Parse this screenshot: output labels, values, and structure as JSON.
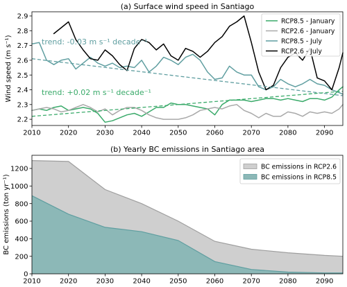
{
  "chart_data": [
    {
      "type": "line",
      "title": "(a) Surface wind speed in Santiago",
      "ylabel": "Wind speed (m s⁻¹)",
      "xlim": [
        2010,
        2095
      ],
      "ylim": [
        2.158,
        2.928
      ],
      "grid": false,
      "legend_position": "top-right",
      "x_ticks": [
        "2010",
        "2020",
        "2030",
        "2040",
        "2050",
        "2060",
        "2070",
        "2080",
        "2090"
      ],
      "y_ticks": [
        "2.2",
        "2.3",
        "2.4",
        "2.5",
        "2.6",
        "2.7",
        "2.8",
        "2.9"
      ],
      "x": [
        2010,
        2012,
        2014,
        2016,
        2018,
        2020,
        2022,
        2024,
        2026,
        2028,
        2030,
        2032,
        2034,
        2036,
        2038,
        2040,
        2042,
        2044,
        2046,
        2048,
        2050,
        2052,
        2054,
        2056,
        2058,
        2060,
        2062,
        2064,
        2066,
        2068,
        2070,
        2072,
        2074,
        2076,
        2078,
        2080,
        2082,
        2084,
        2086,
        2088,
        2090,
        2092,
        2094,
        2095
      ],
      "series": [
        {
          "name": "RCP8.5 - January",
          "color": "#3aaa6a",
          "values": [
            2.26,
            2.27,
            2.26,
            2.28,
            2.29,
            2.26,
            2.27,
            2.28,
            2.27,
            2.24,
            2.18,
            2.19,
            2.21,
            2.23,
            2.24,
            2.22,
            2.25,
            2.28,
            2.28,
            2.31,
            2.3,
            2.3,
            2.29,
            2.28,
            2.27,
            2.23,
            2.3,
            2.33,
            2.33,
            2.33,
            2.32,
            2.33,
            2.34,
            2.34,
            2.33,
            2.34,
            2.33,
            2.32,
            2.34,
            2.34,
            2.33,
            2.35,
            2.4,
            2.42
          ]
        },
        {
          "name": "RCP2.6 - January",
          "color": "#a9a9a9",
          "values": [
            2.26,
            2.27,
            2.28,
            2.27,
            2.25,
            2.26,
            2.28,
            2.3,
            2.28,
            2.25,
            2.27,
            2.23,
            2.26,
            2.28,
            2.28,
            2.26,
            2.23,
            2.21,
            2.2,
            2.2,
            2.2,
            2.21,
            2.23,
            2.26,
            2.27,
            2.28,
            2.27,
            2.29,
            2.3,
            2.26,
            2.24,
            2.21,
            2.24,
            2.22,
            2.22,
            2.25,
            2.24,
            2.22,
            2.25,
            2.24,
            2.25,
            2.24,
            2.27,
            2.3
          ]
        },
        {
          "name": "RCP8.5 - July",
          "color": "#5f9ea0",
          "values": [
            2.71,
            2.72,
            2.6,
            2.57,
            2.6,
            2.61,
            2.54,
            2.58,
            2.62,
            2.58,
            2.56,
            2.58,
            2.55,
            2.56,
            2.55,
            2.6,
            2.52,
            2.56,
            2.62,
            2.6,
            2.57,
            2.62,
            2.64,
            2.6,
            2.52,
            2.47,
            2.48,
            2.56,
            2.52,
            2.5,
            2.5,
            2.42,
            2.4,
            2.42,
            2.47,
            2.44,
            2.42,
            2.44,
            2.47,
            2.44,
            2.43,
            2.4,
            2.38,
            2.37
          ]
        },
        {
          "name": "RCP2.6 - July",
          "color": "#000000",
          "values": [
            null,
            null,
            null,
            2.78,
            2.82,
            2.86,
            2.74,
            2.67,
            2.61,
            2.6,
            2.67,
            2.63,
            2.57,
            2.53,
            2.68,
            2.74,
            2.72,
            2.67,
            2.71,
            2.63,
            2.6,
            2.68,
            2.66,
            2.62,
            2.66,
            2.72,
            2.76,
            2.83,
            2.86,
            2.9,
            2.72,
            2.52,
            2.4,
            2.43,
            2.55,
            2.62,
            2.65,
            2.6,
            2.68,
            2.48,
            2.46,
            2.4,
            2.55,
            2.65
          ]
        }
      ],
      "trends": [
        {
          "label": "trend: -0.03 m s⁻¹ decade⁻¹",
          "color": "#5f9ea0",
          "x": [
            2010,
            2095
          ],
          "values": [
            2.61,
            2.36
          ]
        },
        {
          "label": "trend: +0.02 m s⁻¹ decade⁻¹",
          "color": "#3aaa6a",
          "x": [
            2010,
            2095
          ],
          "values": [
            2.22,
            2.39
          ]
        }
      ]
    },
    {
      "type": "area",
      "title": "(b) Yearly BC emissions in Santiago area",
      "ylabel": "BC emissions (ton yr⁻¹)",
      "xlim": [
        2010,
        2095
      ],
      "ylim": [
        0,
        1350
      ],
      "grid": false,
      "legend_position": "top-right",
      "x_ticks": [
        "2010",
        "2020",
        "2030",
        "2040",
        "2050",
        "2060",
        "2070",
        "2080",
        "2090"
      ],
      "y_ticks": [
        "0",
        "200",
        "400",
        "600",
        "800",
        "1000",
        "1200"
      ],
      "x": [
        2010,
        2020,
        2030,
        2040,
        2050,
        2060,
        2070,
        2080,
        2090,
        2095
      ],
      "series": [
        {
          "name": "BC emissions in RCP2.6",
          "color": "#9e9e9e",
          "fill": "#cfcfcf",
          "values": [
            1290,
            1280,
            960,
            800,
            600,
            370,
            280,
            240,
            210,
            200
          ]
        },
        {
          "name": "BC emissions in RCP8.5",
          "color": "#5f9ea0",
          "fill": "#8cb8b7",
          "values": [
            890,
            680,
            530,
            480,
            380,
            140,
            50,
            20,
            10,
            10
          ]
        }
      ]
    }
  ]
}
